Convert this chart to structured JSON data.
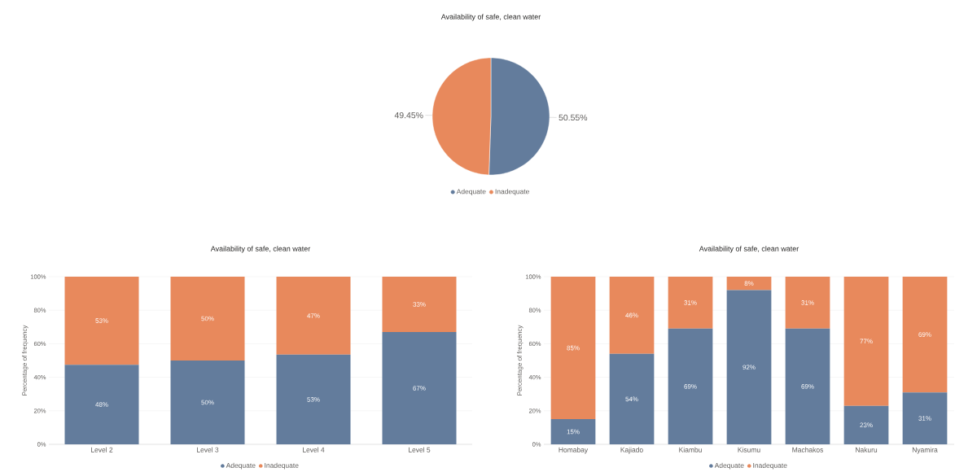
{
  "chart_data": [
    {
      "type": "pie",
      "title": "Availability of safe, clean water",
      "categories": [
        "Adequate",
        "Inadequate"
      ],
      "values": [
        50.55,
        49.45
      ],
      "colors": [
        "#637c9c",
        "#e8895c"
      ],
      "value_labels": [
        "50.55%",
        "49.45%"
      ],
      "legend": "bottom"
    },
    {
      "type": "bar",
      "stacked": true,
      "title": "Availability of safe, clean water",
      "ylabel": "Percentage of frequency",
      "categories": [
        "Level 2",
        "Level 3",
        "Level 4",
        "Level 5"
      ],
      "series": [
        {
          "name": "Adequate",
          "color": "#637c9c",
          "values": [
            47.5,
            50,
            53.5,
            67
          ],
          "value_labels": [
            "48%",
            "50%",
            "53%",
            "67%"
          ]
        },
        {
          "name": "Inadequate",
          "color": "#e8895c",
          "values": [
            52.5,
            50,
            46.5,
            33
          ],
          "value_labels": [
            "53%",
            "50%",
            "47%",
            "33%"
          ]
        }
      ],
      "ylim": [
        0,
        100
      ],
      "yticks": [
        {
          "value": 0,
          "label": "0%"
        },
        {
          "value": 20,
          "label": "20%"
        },
        {
          "value": 40,
          "label": "40%"
        },
        {
          "value": 60,
          "label": "60%"
        },
        {
          "value": 80,
          "label": "80%"
        },
        {
          "value": 100,
          "label": "100%"
        }
      ],
      "grid": "y",
      "legend": "bottom"
    },
    {
      "type": "bar",
      "stacked": true,
      "title": "Availability of safe, clean water",
      "ylabel": "Percentage of frequency",
      "categories": [
        "Homabay",
        "Kajiado",
        "Kiambu",
        "Kisumu",
        "Machakos",
        "Nakuru",
        "Nyamira"
      ],
      "series": [
        {
          "name": "Adequate",
          "color": "#637c9c",
          "values": [
            15,
            54,
            69,
            92,
            69,
            23,
            31
          ],
          "value_labels": [
            "15%",
            "54%",
            "69%",
            "92%",
            "69%",
            "23%",
            "31%"
          ]
        },
        {
          "name": "Inadequate",
          "color": "#e8895c",
          "values": [
            85,
            46,
            31,
            8,
            31,
            77,
            69
          ],
          "value_labels": [
            "85%",
            "46%",
            "31%",
            "8%",
            "31%",
            "77%",
            "69%"
          ]
        }
      ],
      "ylim": [
        0,
        100
      ],
      "yticks": [
        {
          "value": 0,
          "label": "0%"
        },
        {
          "value": 20,
          "label": "20%"
        },
        {
          "value": 40,
          "label": "40%"
        },
        {
          "value": 60,
          "label": "60%"
        },
        {
          "value": 80,
          "label": "80%"
        },
        {
          "value": 100,
          "label": "100%"
        }
      ],
      "grid": "y",
      "legend": "bottom"
    }
  ]
}
